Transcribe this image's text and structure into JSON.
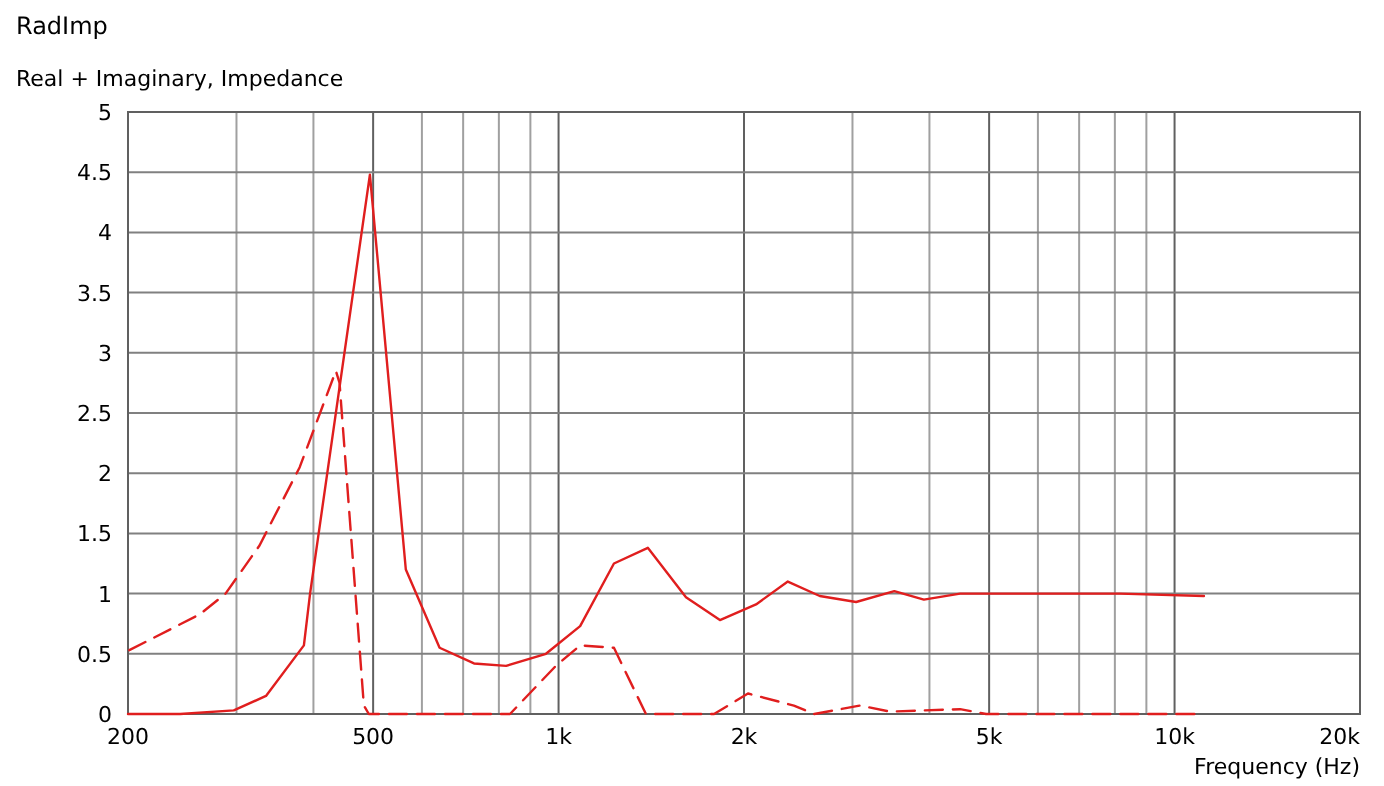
{
  "chart_data": {
    "type": "line",
    "title": "RadImp",
    "subtitle": "Real + Imaginary, Impedance",
    "xlabel": "Frequency  (Hz)",
    "log": "x",
    "grid": true,
    "marker": "none",
    "xlim": [
      200,
      20000
    ],
    "ylim": [
      0,
      5
    ],
    "xticks": [
      200,
      {
        "value": 300,
        "label": null
      },
      {
        "value": 400,
        "label": null
      },
      500,
      {
        "value": 600,
        "label": null
      },
      {
        "value": 700,
        "label": null
      },
      {
        "value": 800,
        "label": null
      },
      {
        "value": 900,
        "label": null
      },
      {
        "value": 1000,
        "label": "1k"
      },
      {
        "value": 2000,
        "label": "2k"
      },
      {
        "value": 3000,
        "label": null
      },
      {
        "value": 4000,
        "label": null
      },
      {
        "value": 5000,
        "label": "5k"
      },
      {
        "value": 6000,
        "label": null
      },
      {
        "value": 7000,
        "label": null
      },
      {
        "value": 8000,
        "label": null
      },
      {
        "value": 9000,
        "label": null
      },
      {
        "value": 10000,
        "label": "10k"
      },
      {
        "value": 20000,
        "label": "20k"
      }
    ],
    "yticks": [
      0,
      0.5,
      1,
      1.5,
      2,
      2.5,
      3,
      3.5,
      4,
      4.5,
      5
    ],
    "series": [
      {
        "color": "#e01e1e",
        "line_style": "solid",
        "x": [
          200,
          243,
          297,
          335,
          386,
          395,
          494,
          565,
          641,
          729,
          822,
          954,
          1084,
          1230,
          1396,
          1610,
          1828,
          2092,
          2356,
          2655,
          3041,
          3508,
          3918,
          4486,
          6054,
          8150,
          11160
        ],
        "values": [
          0,
          0,
          0.03,
          0.15,
          0.57,
          1.0,
          4.48,
          1.2,
          0.55,
          0.42,
          0.4,
          0.5,
          0.73,
          1.25,
          1.38,
          0.97,
          0.78,
          0.91,
          1.1,
          0.98,
          0.93,
          1.02,
          0.95,
          1.0,
          1.0,
          1.0,
          0.98
        ]
      },
      {
        "color": "#e01e1e",
        "line_style": "dashed",
        "x": [
          201,
          262,
          288,
          327,
          380,
          435,
          441,
          483,
          492,
          834,
          990,
          1084,
          1230,
          1386,
          1788,
          2030,
          2410,
          2600,
          3085,
          3451,
          4486,
          4944,
          11160
        ],
        "values": [
          0.53,
          0.83,
          1.0,
          1.4,
          2.05,
          2.85,
          2.75,
          0.07,
          0,
          0,
          0.4,
          0.57,
          0.55,
          0,
          0,
          0.17,
          0.07,
          0,
          0.07,
          0.02,
          0.04,
          0,
          0
        ]
      }
    ]
  }
}
